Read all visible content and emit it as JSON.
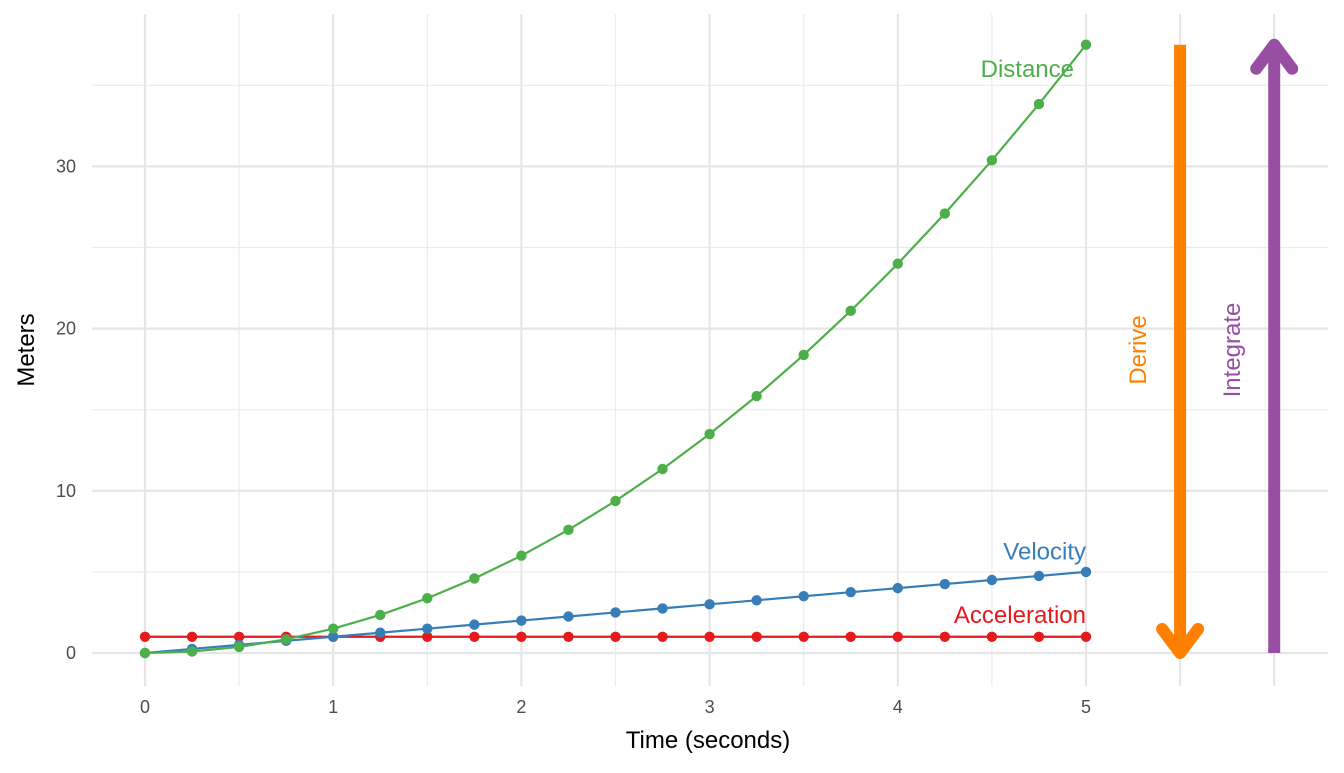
{
  "chart_data": {
    "type": "line",
    "title": "",
    "xlabel": "Time (seconds)",
    "ylabel": "Meters",
    "xlim": [
      0,
      6
    ],
    "ylim": [
      0,
      37.5
    ],
    "x_ticks": [
      0,
      1,
      2,
      3,
      4,
      5
    ],
    "x_tick_labels": [
      "0",
      "1",
      "2",
      "3",
      "4",
      "5"
    ],
    "y_ticks": [
      0,
      10,
      20,
      30
    ],
    "y_tick_labels": [
      "0",
      "10",
      "20",
      "30"
    ],
    "grid": true,
    "x": [
      0,
      0.25,
      0.5,
      0.75,
      1,
      1.25,
      1.5,
      1.75,
      2,
      2.25,
      2.5,
      2.75,
      3,
      3.25,
      3.5,
      3.75,
      4,
      4.25,
      4.5,
      4.75,
      5
    ],
    "series": [
      {
        "name": "Acceleration",
        "color": "#E41A1C",
        "values": [
          1,
          1,
          1,
          1,
          1,
          1,
          1,
          1,
          1,
          1,
          1,
          1,
          1,
          1,
          1,
          1,
          1,
          1,
          1,
          1,
          1
        ]
      },
      {
        "name": "Velocity",
        "color": "#377EB8",
        "values": [
          0,
          0.25,
          0.5,
          0.75,
          1,
          1.25,
          1.5,
          1.75,
          2,
          2.25,
          2.5,
          2.75,
          3,
          3.25,
          3.5,
          3.75,
          4,
          4.25,
          4.5,
          4.75,
          5
        ]
      },
      {
        "name": "Distance",
        "color": "#4DAF4A",
        "values": [
          0,
          0.09375,
          0.375,
          0.84375,
          1.5,
          2.34375,
          3.375,
          4.59375,
          6,
          7.59375,
          9.375,
          11.34375,
          13.5,
          15.84375,
          18.375,
          21.09375,
          24,
          27.09375,
          30.375,
          33.84375,
          37.5
        ]
      }
    ],
    "annotations": [
      {
        "label": "Derive",
        "color": "#FF7F00",
        "direction": "down",
        "x": 5.5,
        "from": 37.5,
        "to": 0
      },
      {
        "label": "Integrate",
        "color": "#984EA3",
        "direction": "up",
        "x": 6,
        "from": 0,
        "to": 37.5
      }
    ]
  }
}
